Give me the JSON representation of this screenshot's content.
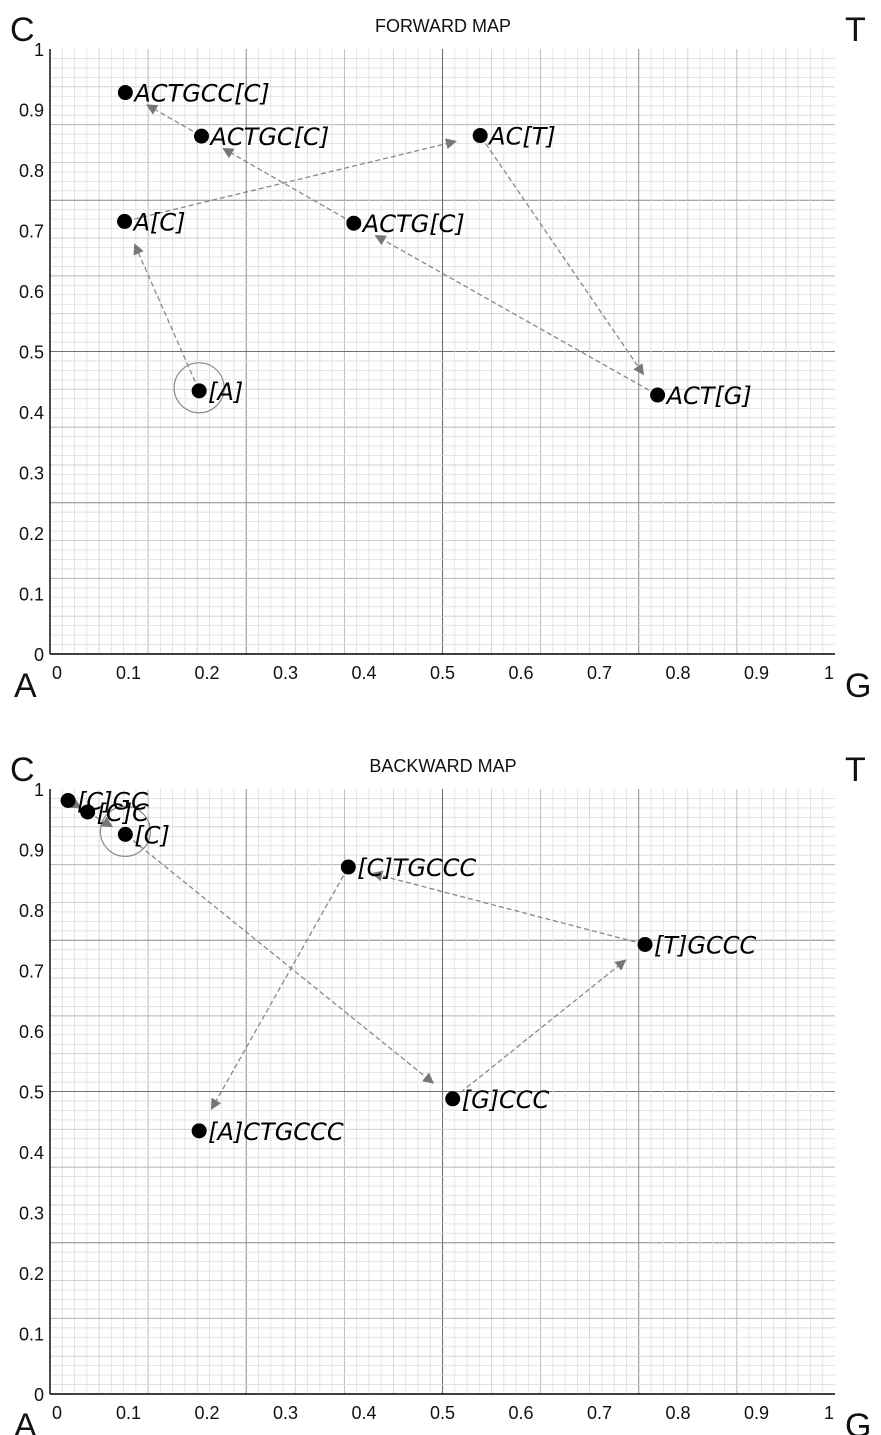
{
  "chart_data": [
    {
      "type": "scatter",
      "title": "FORWARD MAP",
      "corners": {
        "top_left": "C",
        "top_right": "T",
        "bottom_left": "A",
        "bottom_right": "G"
      },
      "xlim": [
        0,
        1
      ],
      "ylim": [
        0,
        1
      ],
      "x_ticks": [
        "0",
        "0.1",
        "0.2",
        "0.3",
        "0.4",
        "0.5",
        "0.6",
        "0.7",
        "0.8",
        "0.9",
        "1"
      ],
      "y_ticks": [
        "0",
        "0.1",
        "0.2",
        "0.3",
        "0.4",
        "0.5",
        "0.6",
        "0.7",
        "0.8",
        "0.9",
        "1"
      ],
      "grid": true,
      "points": [
        {
          "label": "[A]",
          "x": 0.19,
          "y": 0.435
        },
        {
          "label": "A[C]",
          "x": 0.095,
          "y": 0.715
        },
        {
          "label": "AC[T]",
          "x": 0.548,
          "y": 0.857
        },
        {
          "label": "ACT[G]",
          "x": 0.774,
          "y": 0.428
        },
        {
          "label": "ACTG[C]",
          "x": 0.387,
          "y": 0.712
        },
        {
          "label": "ACTGC[C]",
          "x": 0.193,
          "y": 0.856
        },
        {
          "label": "ACTGCC[C]",
          "x": 0.096,
          "y": 0.928
        }
      ],
      "start_marker": {
        "x": 0.19,
        "y": 0.44
      },
      "arrows": [
        [
          0,
          1
        ],
        [
          1,
          2
        ],
        [
          2,
          3
        ],
        [
          3,
          4
        ],
        [
          4,
          5
        ],
        [
          5,
          6
        ]
      ]
    },
    {
      "type": "scatter",
      "title": "BACKWARD MAP",
      "corners": {
        "top_left": "C",
        "top_right": "T",
        "bottom_left": "A",
        "bottom_right": "G"
      },
      "xlim": [
        0,
        1
      ],
      "ylim": [
        0,
        1
      ],
      "x_ticks": [
        "0",
        "0.1",
        "0.2",
        "0.3",
        "0.4",
        "0.5",
        "0.6",
        "0.7",
        "0.8",
        "0.9",
        "1"
      ],
      "y_ticks": [
        "0",
        "0.1",
        "0.2",
        "0.3",
        "0.4",
        "0.5",
        "0.6",
        "0.7",
        "0.8",
        "0.9",
        "1"
      ],
      "grid": true,
      "points": [
        {
          "label": "[C]GC",
          "x": 0.023,
          "y": 0.981
        },
        {
          "label": "[C]C",
          "x": 0.048,
          "y": 0.962
        },
        {
          "label": "[C]",
          "x": 0.096,
          "y": 0.925
        },
        {
          "label": "[G]CCC",
          "x": 0.513,
          "y": 0.488
        },
        {
          "label": "[T]GCCC",
          "x": 0.758,
          "y": 0.743
        },
        {
          "label": "[C]TGCCC",
          "x": 0.38,
          "y": 0.871
        },
        {
          "label": "[A]CTGCCC",
          "x": 0.19,
          "y": 0.435
        }
      ],
      "start_marker": {
        "x": 0.096,
        "y": 0.93
      },
      "arrows": [
        [
          0,
          1
        ],
        [
          1,
          2
        ],
        [
          2,
          3
        ],
        [
          3,
          4
        ],
        [
          4,
          5
        ],
        [
          5,
          6
        ]
      ]
    }
  ]
}
